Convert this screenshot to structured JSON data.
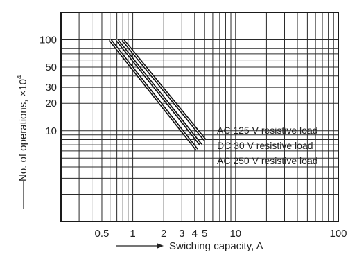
{
  "chart_data": {
    "type": "line",
    "xscale": "log",
    "yscale": "log",
    "xlim": [
      0.2,
      100
    ],
    "ylim": [
      1,
      200
    ],
    "xlabel": "Swiching capacity, A",
    "ylabel": "No. of operations, ×10",
    "ylabel_exponent": "4",
    "x_ticks": [
      {
        "value": 0.5,
        "label": "0.5"
      },
      {
        "value": 1,
        "label": "1"
      },
      {
        "value": 2,
        "label": "2"
      },
      {
        "value": 3,
        "label": "3"
      },
      {
        "value": 4,
        "label": "4"
      },
      {
        "value": 5,
        "label": "5"
      },
      {
        "value": 10,
        "label": "10"
      },
      {
        "value": 100,
        "label": "100"
      }
    ],
    "y_ticks": [
      {
        "value": 10,
        "label": "10"
      },
      {
        "value": 20,
        "label": "20"
      },
      {
        "value": 30,
        "label": "30"
      },
      {
        "value": 50,
        "label": "50"
      },
      {
        "value": 100,
        "label": "100"
      }
    ],
    "grid": true,
    "series": [
      {
        "name": "AC 125 V resistive load",
        "x": [
          0.8,
          5.0
        ],
        "y": [
          100,
          8.0
        ]
      },
      {
        "name": "DC 30 V resistive load",
        "x": [
          0.7,
          4.6
        ],
        "y": [
          100,
          7.0
        ]
      },
      {
        "name": "AC 250 V resistive load",
        "x": [
          0.6,
          4.2
        ],
        "y": [
          100,
          6.2
        ]
      }
    ],
    "colors": {
      "line": "#111111",
      "grid": "#2a2a2a",
      "text": "#222222"
    }
  }
}
